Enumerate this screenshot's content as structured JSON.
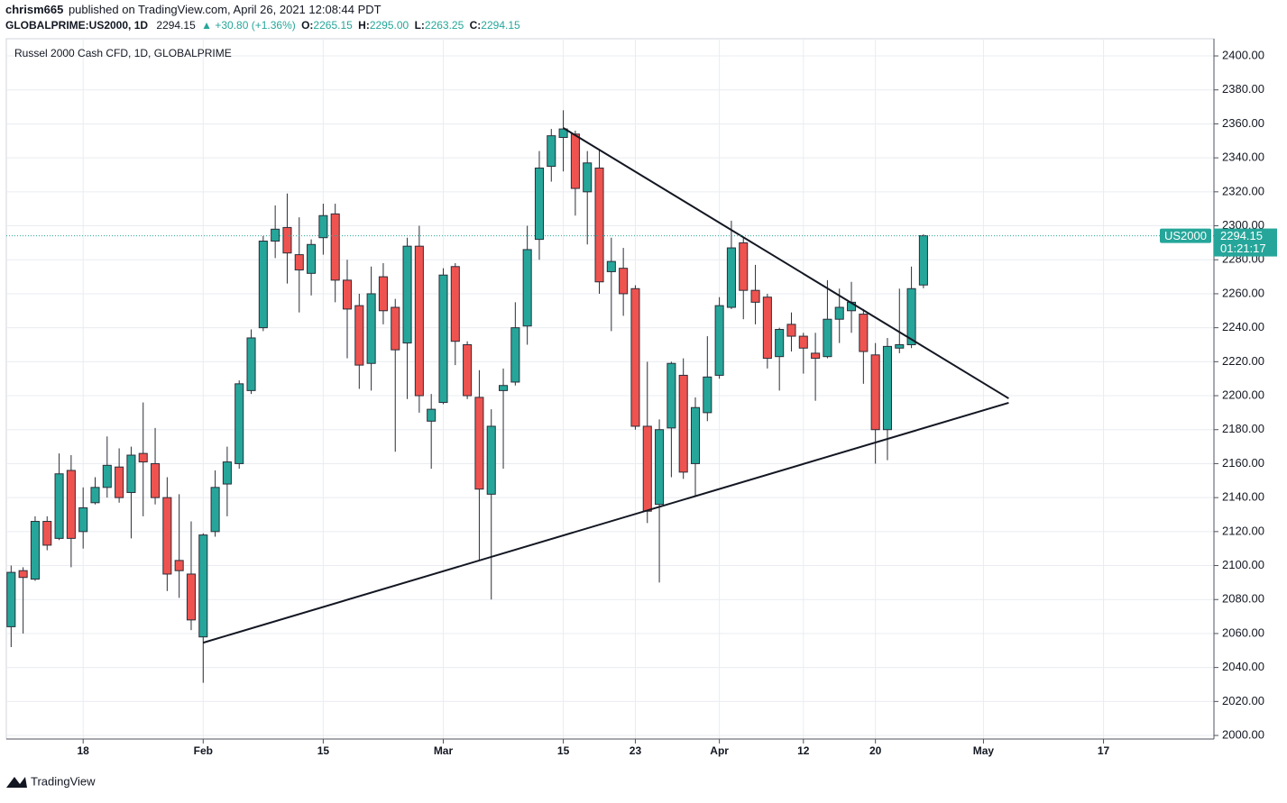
{
  "header": {
    "publisher": "chrism665",
    "published": "published on TradingView.com, April 26, 2021 12:08:44 PDT",
    "symbol": "GLOBALPRIME:US2000, 1D",
    "last": "2294.15",
    "change": "▲ +30.80 (+1.36%)",
    "ohlc": [
      {
        "label": "O:",
        "value": "2265.15"
      },
      {
        "label": "H:",
        "value": "2295.00"
      },
      {
        "label": "L:",
        "value": "2263.25"
      },
      {
        "label": "C:",
        "value": "2294.15"
      }
    ]
  },
  "chart_data": {
    "type": "candlestick",
    "legend": "Russel 2000 Cash CFD, 1D, GLOBALPRIME",
    "x": [
      0,
      1,
      2,
      3,
      4,
      5,
      6,
      7,
      8,
      9,
      10,
      11,
      12,
      13,
      14,
      15,
      16,
      17,
      18,
      19,
      20,
      21,
      22,
      23,
      24,
      25,
      26,
      27,
      28,
      29,
      30,
      31,
      32,
      33,
      34,
      35,
      36,
      37,
      38,
      39,
      40,
      41,
      42,
      43,
      44,
      45,
      46,
      47,
      48,
      49,
      50,
      51,
      52,
      53,
      54,
      55,
      56,
      57,
      58,
      59,
      60,
      61,
      62,
      63,
      64,
      65,
      66,
      67,
      68,
      69,
      70,
      71,
      72,
      73,
      74,
      75,
      76
    ],
    "open": [
      2064,
      2097,
      2092,
      2126,
      2116,
      2156,
      2120,
      2137,
      2146,
      2158,
      2143,
      2166,
      2160,
      2140,
      2103,
      2095,
      2058,
      2120,
      2148,
      2160,
      2203,
      2240,
      2291,
      2299,
      2283,
      2272,
      2293,
      2307,
      2268,
      2253,
      2219,
      2270,
      2252,
      2231,
      2288,
      2185,
      2196,
      2276,
      2230,
      2199,
      2142,
      2203,
      2208,
      2241,
      2292,
      2335,
      2352,
      2354,
      2320,
      2334,
      2273,
      2275,
      2263,
      2182,
      2136,
      2181,
      2212,
      2160,
      2190,
      2212,
      2252,
      2290,
      2262,
      2258,
      2223,
      2242,
      2235,
      2225,
      2223,
      2245,
      2250,
      2248,
      2224,
      2180,
      2228,
      2230,
      2265.15
    ],
    "high": [
      2100,
      2099,
      2129,
      2129,
      2166,
      2165,
      2146,
      2152,
      2176,
      2169,
      2170,
      2196,
      2181,
      2152,
      2142,
      2126,
      2119,
      2156,
      2170,
      2209,
      2239,
      2294,
      2312,
      2319,
      2305,
      2292,
      2313,
      2313,
      2280,
      2260,
      2276,
      2278,
      2257,
      2293,
      2300,
      2201,
      2275,
      2278,
      2232,
      2215,
      2192,
      2216,
      2255,
      2300,
      2344,
      2357,
      2368,
      2356,
      2344,
      2345,
      2293,
      2287,
      2265,
      2220,
      2186,
      2220,
      2222,
      2199,
      2235,
      2258,
      2303,
      2293,
      2277,
      2260,
      2240,
      2249,
      2237,
      2237,
      2268,
      2263,
      2267,
      2251,
      2231,
      2234,
      2263,
      2276,
      2295
    ],
    "low": [
      2052,
      2060,
      2091,
      2109,
      2115,
      2099,
      2110,
      2136,
      2140,
      2137,
      2116,
      2129,
      2136,
      2085,
      2081,
      2062,
      2031,
      2117,
      2129,
      2157,
      2201,
      2238,
      2281,
      2266,
      2249,
      2259,
      2283,
      2255,
      2222,
      2204,
      2203,
      2242,
      2167,
      2198,
      2190,
      2157,
      2195,
      2218,
      2198,
      2103,
      2080,
      2157,
      2206,
      2230,
      2280,
      2326,
      2332,
      2306,
      2289,
      2260,
      2238,
      2247,
      2180,
      2125,
      2090,
      2152,
      2151,
      2141,
      2185,
      2210,
      2251,
      2245,
      2242,
      2216,
      2203,
      2226,
      2213,
      2197,
      2222,
      2231,
      2237,
      2207,
      2160,
      2162,
      2225,
      2228,
      2263.25
    ],
    "close": [
      2096,
      2093,
      2126,
      2112,
      2154,
      2116,
      2134,
      2146,
      2159,
      2140,
      2165,
      2161,
      2140,
      2095,
      2097,
      2068,
      2118,
      2146,
      2161,
      2207,
      2234,
      2291,
      2298,
      2284,
      2274,
      2289,
      2306,
      2268,
      2251,
      2218,
      2260,
      2250,
      2227,
      2288,
      2200,
      2192,
      2271,
      2232,
      2200,
      2145,
      2182,
      2206,
      2240,
      2286,
      2334,
      2353,
      2357,
      2322,
      2337,
      2267,
      2279,
      2260,
      2182,
      2132,
      2180,
      2219,
      2155,
      2193,
      2211,
      2253,
      2287,
      2262,
      2255,
      2222,
      2239,
      2235,
      2228,
      2222,
      2245,
      2252,
      2255,
      2226,
      2180,
      2229,
      2230,
      2263,
      2294.15
    ],
    "up_color": "#26a69a",
    "down_color": "#ef5350",
    "xlim": [
      -0.4,
      100.2
    ],
    "xticks": [
      {
        "value": 6,
        "label": "18"
      },
      {
        "value": 16,
        "label": "Feb"
      },
      {
        "value": 26,
        "label": "15"
      },
      {
        "value": 36,
        "label": "Mar"
      },
      {
        "value": 46,
        "label": "15"
      },
      {
        "value": 52,
        "label": "23"
      },
      {
        "value": 59,
        "label": "Apr"
      },
      {
        "value": 66,
        "label": "12"
      },
      {
        "value": 72,
        "label": "20"
      },
      {
        "value": 81,
        "label": "May"
      },
      {
        "value": 91,
        "label": "17"
      }
    ],
    "ylim": [
      1997.9,
      2410.1
    ],
    "yticks": [
      {
        "value": 2000,
        "label": "2000.00"
      },
      {
        "value": 2020,
        "label": "2020.00"
      },
      {
        "value": 2040,
        "label": "2040.00"
      },
      {
        "value": 2060,
        "label": "2060.00"
      },
      {
        "value": 2080,
        "label": "2080.00"
      },
      {
        "value": 2100,
        "label": "2100.00"
      },
      {
        "value": 2120,
        "label": "2120.00"
      },
      {
        "value": 2140,
        "label": "2140.00"
      },
      {
        "value": 2160,
        "label": "2160.00"
      },
      {
        "value": 2180,
        "label": "2180.00"
      },
      {
        "value": 2200,
        "label": "2200.00"
      },
      {
        "value": 2220,
        "label": "2220.00"
      },
      {
        "value": 2240,
        "label": "2240.00"
      },
      {
        "value": 2260,
        "label": "2260.00"
      },
      {
        "value": 2280,
        "label": "2280.00"
      },
      {
        "value": 2300,
        "label": "2300.00"
      },
      {
        "value": 2320,
        "label": "2320.00"
      },
      {
        "value": 2340,
        "label": "2340.00"
      },
      {
        "value": 2360,
        "label": "2360.00"
      },
      {
        "value": 2380,
        "label": "2380.00"
      },
      {
        "value": 2400,
        "label": "2400.00"
      }
    ],
    "grid": true,
    "trendlines": [
      {
        "x": [
          46,
          83.1
        ],
        "y": [
          2357.6,
          2198.4
        ]
      },
      {
        "x": [
          16,
          83.1
        ],
        "y": [
          2054.6,
          2195.8
        ]
      }
    ],
    "last_price": 2294.15,
    "symbol": "US2000",
    "countdown": "01:21:17"
  },
  "footer": "TradingView"
}
